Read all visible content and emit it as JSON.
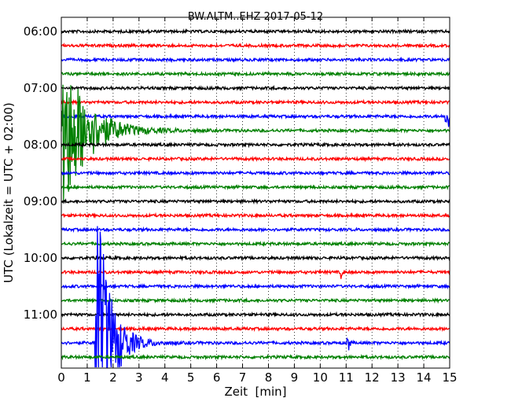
{
  "chart_data": {
    "type": "line",
    "title": "BW.ALTM..EHZ 2017-05-12",
    "xlabel": "Zeit  [min]",
    "ylabel": "UTC (Lokalzeit = UTC + 02:00)",
    "xlim": [
      0,
      15
    ],
    "x_ticks": [
      "0",
      "1",
      "2",
      "3",
      "4",
      "5",
      "6",
      "7",
      "8",
      "9",
      "10",
      "11",
      "12",
      "13",
      "14",
      "15"
    ],
    "y_tick_labels": [
      "06:00",
      "07:00",
      "08:00",
      "09:00",
      "10:00",
      "11:00"
    ],
    "trace_interval_min": 15,
    "trace_colors": [
      "#000000",
      "#ff0000",
      "#0000ff",
      "#008000"
    ],
    "grid": "vertical dotted",
    "traces": [
      {
        "start": "06:00",
        "events": []
      },
      {
        "start": "06:15",
        "events": []
      },
      {
        "start": "06:30",
        "events": []
      },
      {
        "start": "06:45",
        "events": []
      },
      {
        "start": "07:00",
        "events": []
      },
      {
        "start": "07:15",
        "events": []
      },
      {
        "start": "07:30",
        "events": [
          {
            "t": 14.85,
            "amp": 2.6,
            "decay": 0.08
          }
        ]
      },
      {
        "start": "07:45",
        "events": [
          {
            "t": 0.05,
            "amp": 6.0,
            "decay": 0.9
          }
        ]
      },
      {
        "start": "08:00",
        "events": []
      },
      {
        "start": "08:15",
        "events": []
      },
      {
        "start": "08:30",
        "events": []
      },
      {
        "start": "08:45",
        "events": []
      },
      {
        "start": "09:00",
        "events": []
      },
      {
        "start": "09:15",
        "events": []
      },
      {
        "start": "09:30",
        "events": []
      },
      {
        "start": "09:45",
        "events": []
      },
      {
        "start": "10:00",
        "events": []
      },
      {
        "start": "10:15",
        "events": [
          {
            "t": 10.8,
            "amp": 0.5,
            "decay": 0.05
          }
        ]
      },
      {
        "start": "10:30",
        "events": []
      },
      {
        "start": "10:45",
        "events": []
      },
      {
        "start": "11:00",
        "events": []
      },
      {
        "start": "11:15",
        "events": []
      },
      {
        "start": "11:30",
        "events": [
          {
            "t": 1.3,
            "amp": 12.0,
            "decay": 0.5
          },
          {
            "t": 11.05,
            "amp": 1.4,
            "decay": 0.05
          }
        ]
      },
      {
        "start": "11:45",
        "events": []
      }
    ]
  }
}
